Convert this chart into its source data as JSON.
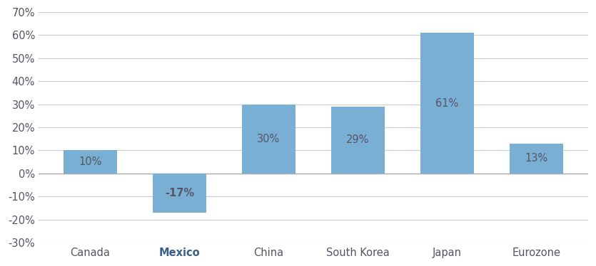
{
  "categories": [
    "Canada",
    "Mexico",
    "China",
    "South Korea",
    "Japan",
    "Eurozone"
  ],
  "values": [
    10,
    -17,
    30,
    29,
    61,
    13
  ],
  "bar_color": "#7aafd4",
  "label_color": "#555566",
  "background_color": "#ffffff",
  "grid_color": "#cccccc",
  "zero_line_color": "#aaaaaa",
  "ylim": [
    -30,
    70
  ],
  "yticks": [
    -30,
    -20,
    -10,
    0,
    10,
    20,
    30,
    40,
    50,
    60,
    70
  ],
  "bar_width": 0.6,
  "label_fontsize": 10.5,
  "tick_fontsize": 10.5,
  "mexico_bold": true,
  "mexico_label_color": "#3a5f8a"
}
